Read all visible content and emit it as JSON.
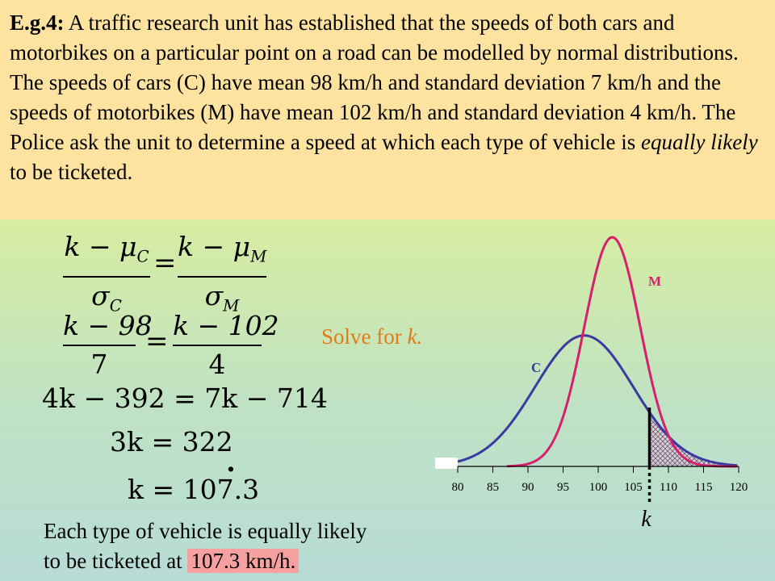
{
  "problem": {
    "label": "E.g.4:",
    "text": " A traffic research unit has established that the speeds of both cars and motorbikes on a particular point on a road can be modelled by normal distributions. The speeds of cars (C) have mean 98 km/h and standard deviation 7 km/h and the speeds of motorbikes (M) have mean 102 km/h and standard deviation 4 km/h. The Police ask the unit to determine a speed at which each type of vehicle is",
    "emph": "equally likely",
    "tail": " to be ticketed."
  },
  "working": {
    "step2_num_left": "k − 98",
    "step2_den_left": "7",
    "step2_num_right": "k − 102",
    "step2_den_right": "4",
    "step3": "4k − 392 = 7k − 714",
    "step4": "3k = 322",
    "step5": "k = 107.3",
    "equals": "="
  },
  "solve_prefix": "Solve for ",
  "solve_var": "k.",
  "conclusion": {
    "line1": "Each type of vehicle is equally likely",
    "line2_prefix": "to be ticketed at ",
    "line2_highlight": "107.3 km/h."
  },
  "chart_data": {
    "type": "line",
    "x_ticks": [
      "80",
      "85",
      "90",
      "95",
      "100",
      "105",
      "110",
      "115",
      "120"
    ],
    "xlim": [
      80,
      120
    ],
    "series": [
      {
        "name": "C",
        "mean": 98,
        "sd": 7,
        "color": "#3a3aa0"
      },
      {
        "name": "M",
        "mean": 102,
        "sd": 4,
        "color": "#d6206e"
      }
    ],
    "marker_label": "k",
    "marker_x": 107.3
  }
}
